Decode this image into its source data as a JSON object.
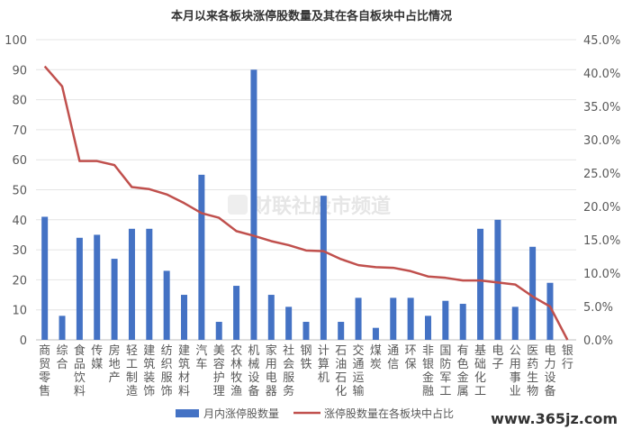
{
  "chart_data": {
    "type": "bar+line",
    "title": "本月以来各板块涨停股数量及其在各自板块中占比情况",
    "categories": [
      "商贸零售",
      "综合",
      "食品饮料",
      "传媒",
      "房地产",
      "轻工制造",
      "建筑装饰",
      "纺织服饰",
      "建筑材料",
      "汽车",
      "美容护理",
      "农林牧渔",
      "机械设备",
      "家用电器",
      "社会服务",
      "钢铁",
      "计算机",
      "石油石化",
      "交通运输",
      "煤炭",
      "通信",
      "环保",
      "非银金融",
      "国防军工",
      "有色金属",
      "基础化工",
      "电子",
      "公用事业",
      "医药生物",
      "电力设备",
      "银行"
    ],
    "left_axis": {
      "ylim": [
        0,
        100
      ],
      "ticks": [
        "0",
        "10",
        "20",
        "30",
        "40",
        "50",
        "60",
        "70",
        "80",
        "90",
        "100"
      ]
    },
    "right_axis": {
      "ylim": [
        0,
        45
      ],
      "ticks": [
        "0.0%",
        "5.0%",
        "10.0%",
        "15.0%",
        "20.0%",
        "25.0%",
        "30.0%",
        "35.0%",
        "40.0%",
        "45.0%"
      ]
    },
    "series": [
      {
        "name": "月内涨停股数量",
        "type": "bar",
        "color": "#4472c4",
        "axis": "left",
        "values": [
          41,
          8,
          34,
          35,
          27,
          37,
          37,
          23,
          15,
          55,
          6,
          18,
          90,
          15,
          11,
          6,
          48,
          6,
          14,
          4,
          14,
          14,
          8,
          13,
          12,
          37,
          40,
          11,
          31,
          19,
          0
        ]
      },
      {
        "name": "涨停股数量在各板块中占比",
        "type": "line",
        "color": "#c0504d",
        "axis": "right",
        "values": [
          41.0,
          38.0,
          26.8,
          26.8,
          26.2,
          22.9,
          22.6,
          21.8,
          20.5,
          19.0,
          18.3,
          16.3,
          15.6,
          14.8,
          14.2,
          13.4,
          13.3,
          12.1,
          11.2,
          10.9,
          10.8,
          10.3,
          9.5,
          9.3,
          8.9,
          8.9,
          8.6,
          8.3,
          6.5,
          5.0,
          0.0
        ]
      }
    ],
    "grid": "horizontal",
    "legend": "bottom"
  },
  "watermark": {
    "brand": "财联社股市频道",
    "site": "www.365jz.com"
  }
}
